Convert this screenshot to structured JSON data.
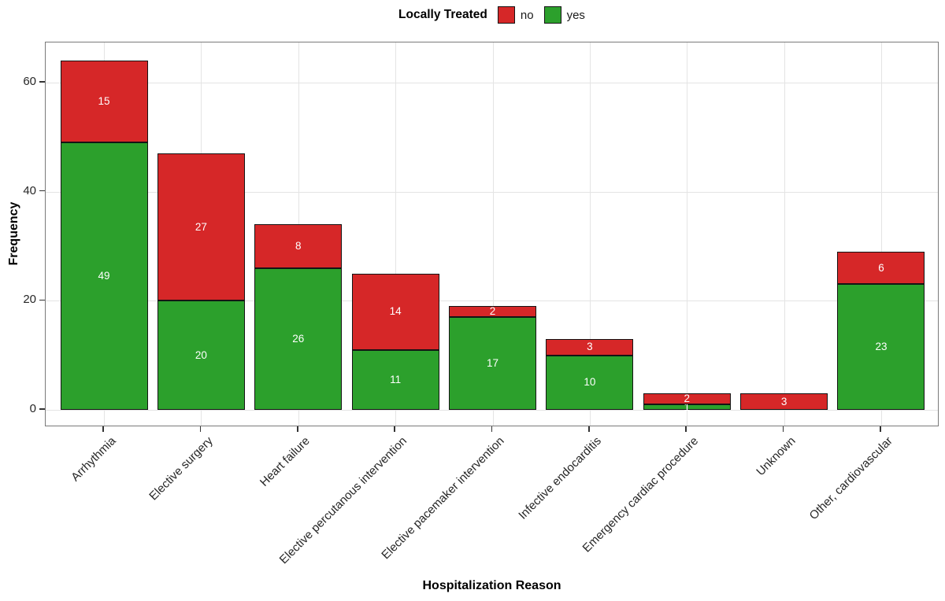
{
  "chart_data": {
    "type": "bar",
    "subtype": "stacked",
    "title": "",
    "xlabel": "Hospitalization Reason",
    "ylabel": "Frequency",
    "legend": {
      "title": "Locally Treated",
      "position": "top-center",
      "entries": [
        {
          "label": "no",
          "color": "#D62728"
        },
        {
          "label": "yes",
          "color": "#2CA02C"
        }
      ]
    },
    "categories": [
      "Arrhythmia",
      "Elective surgery",
      "Heart failure",
      "Elective percutanous intervention",
      "Elective pacemaker intervention",
      "Infective endocarditis",
      "Emergency cardiac procedure",
      "Unknown",
      "Other, cardiovascular"
    ],
    "series": [
      {
        "name": "yes",
        "color": "#2CA02C",
        "values": [
          49,
          20,
          26,
          11,
          17,
          10,
          1,
          0,
          23
        ]
      },
      {
        "name": "no",
        "color": "#D62728",
        "values": [
          15,
          27,
          8,
          14,
          2,
          3,
          2,
          3,
          6
        ]
      }
    ],
    "stack_order_bottom_to_top": [
      "yes",
      "no"
    ],
    "totals": [
      64,
      47,
      34,
      25,
      19,
      13,
      3,
      3,
      29
    ],
    "y_ticks": [
      "0",
      "20",
      "40",
      "60"
    ],
    "ylim": [
      -3.2,
      67.2
    ],
    "grid": {
      "horizontal": "major-only",
      "vertical": "at-category-centers",
      "minor": "none"
    },
    "colors": {
      "background": "#FFFFFF",
      "bar_outline": "#141414",
      "grid": "#E4E4E4",
      "panel_border": "#7A7A7A",
      "tick": "#333333",
      "axis_text": "#262626",
      "bar_label_text": "#FFFFFF"
    }
  }
}
